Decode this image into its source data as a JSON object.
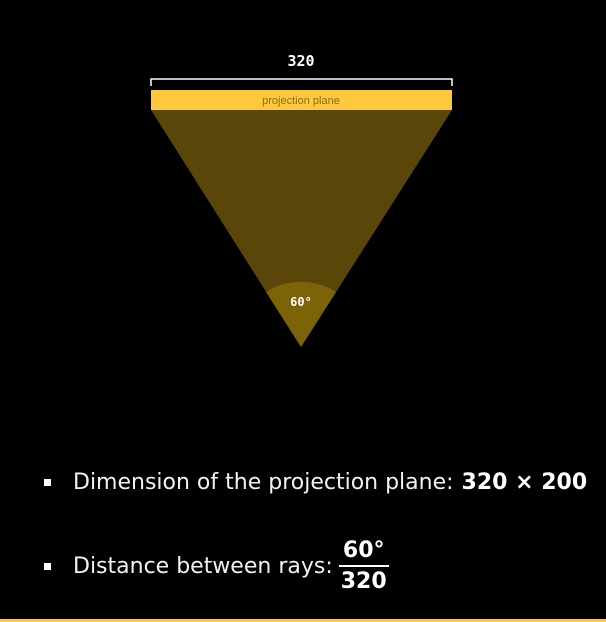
{
  "diagram": {
    "width_label": "320",
    "plane_label": "projection plane",
    "angle_label": "60°"
  },
  "bullets": [
    {
      "text": "Dimension of the projection plane:",
      "value": "320 × 200"
    },
    {
      "text": "Distance between rays:",
      "numerator": "60°",
      "denominator": "320"
    }
  ],
  "colors": {
    "plane": "#ffc83d",
    "frustum": "#5a4608",
    "angle_arc": "#7b6308",
    "background": "#000000"
  }
}
